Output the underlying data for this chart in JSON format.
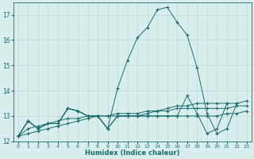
{
  "x": [
    0,
    1,
    2,
    3,
    4,
    5,
    6,
    7,
    8,
    9,
    10,
    11,
    12,
    13,
    14,
    15,
    16,
    17,
    18,
    19,
    20,
    21,
    22,
    23
  ],
  "line_main": [
    12.2,
    12.8,
    12.5,
    12.7,
    12.7,
    13.3,
    13.2,
    13.0,
    13.0,
    12.5,
    14.1,
    15.2,
    16.1,
    16.5,
    17.2,
    17.3,
    16.7,
    16.2,
    14.9,
    13.1,
    12.3,
    12.5,
    13.5,
    null
  ],
  "line_mid": [
    12.2,
    12.8,
    12.5,
    12.7,
    12.7,
    13.3,
    13.2,
    13.0,
    13.0,
    12.5,
    13.0,
    13.0,
    13.0,
    13.0,
    13.0,
    13.0,
    13.0,
    13.8,
    13.1,
    12.3,
    12.5,
    13.5,
    null,
    null
  ],
  "line_low1": [
    12.2,
    12.8,
    12.5,
    12.7,
    12.7,
    13.3,
    13.2,
    13.0,
    13.0,
    12.5,
    13.0,
    13.0,
    13.0,
    13.1,
    13.2,
    13.3,
    13.4,
    13.4,
    13.5,
    13.5,
    13.5,
    13.5,
    13.5,
    13.6
  ],
  "line_low2": [
    12.2,
    12.5,
    12.6,
    12.7,
    12.8,
    12.9,
    12.9,
    13.0,
    13.0,
    13.0,
    13.1,
    13.1,
    13.1,
    13.2,
    13.2,
    13.2,
    13.3,
    13.3,
    13.3,
    13.3,
    13.3,
    13.3,
    13.4,
    13.4
  ],
  "line_low3": [
    12.2,
    12.3,
    12.4,
    12.5,
    12.6,
    12.7,
    12.8,
    12.9,
    13.0,
    13.0,
    13.0,
    13.0,
    13.0,
    13.0,
    13.0,
    13.0,
    13.0,
    13.0,
    13.0,
    13.0,
    13.0,
    13.1,
    13.1,
    13.2
  ],
  "bg_color": "#d8eeed",
  "grid_color": "#c0d8d6",
  "line_color": "#1a6b6b",
  "ylim": [
    12.0,
    17.5
  ],
  "xlim": [
    -0.5,
    23.5
  ],
  "yticks": [
    12,
    13,
    14,
    15,
    16,
    17
  ],
  "xticks": [
    0,
    1,
    2,
    3,
    4,
    5,
    6,
    7,
    8,
    9,
    10,
    11,
    12,
    13,
    14,
    15,
    16,
    17,
    18,
    19,
    20,
    21,
    22,
    23
  ],
  "xlabel": "Humidex (Indice chaleur)"
}
